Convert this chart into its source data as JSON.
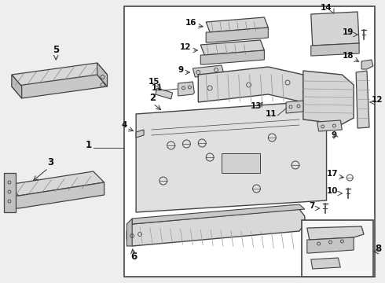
{
  "bg_color": "#eeeeee",
  "line_color": "#444444",
  "part_fill": "#e8e8e8",
  "part_stroke": "#555555",
  "white_fill": "#ffffff",
  "label_color": "#111111"
}
